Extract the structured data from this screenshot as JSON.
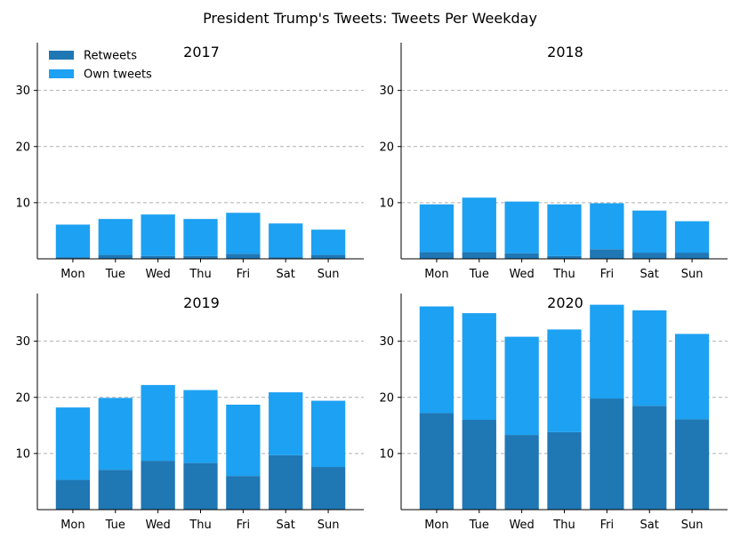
{
  "title": "President Trump's Tweets: Tweets Per Weekday",
  "colors": {
    "retweets": "#1f77b4",
    "own_tweets": "#1da1f2",
    "grid": "#b0b0b0"
  },
  "chart_data": [
    {
      "type": "bar",
      "title": "2017",
      "categories": [
        "Mon",
        "Tue",
        "Wed",
        "Thu",
        "Fri",
        "Sat",
        "Sun"
      ],
      "ylim": [
        0,
        38.5
      ],
      "yticks": [
        10,
        20,
        30
      ],
      "grid": "y-dashed",
      "legend": "top-left",
      "stacked": true,
      "series": [
        {
          "name": "Retweets",
          "values": [
            0.3,
            0.7,
            0.5,
            0.5,
            0.9,
            0.3,
            0.7
          ]
        },
        {
          "name": "Own tweets",
          "values": [
            5.8,
            6.4,
            7.4,
            6.6,
            7.3,
            6.0,
            4.5
          ]
        }
      ]
    },
    {
      "type": "bar",
      "title": "2018",
      "categories": [
        "Mon",
        "Tue",
        "Wed",
        "Thu",
        "Fri",
        "Sat",
        "Sun"
      ],
      "ylim": [
        0,
        38.5
      ],
      "yticks": [
        10,
        20,
        30
      ],
      "grid": "y-dashed",
      "stacked": true,
      "series": [
        {
          "name": "Retweets",
          "values": [
            1.2,
            1.2,
            1.0,
            0.5,
            1.7,
            1.1,
            1.1
          ]
        },
        {
          "name": "Own tweets",
          "values": [
            8.5,
            9.7,
            9.2,
            9.2,
            8.2,
            7.5,
            5.6
          ]
        }
      ]
    },
    {
      "type": "bar",
      "title": "2019",
      "categories": [
        "Mon",
        "Tue",
        "Wed",
        "Thu",
        "Fri",
        "Sat",
        "Sun"
      ],
      "ylim": [
        0,
        38.5
      ],
      "yticks": [
        10,
        20,
        30
      ],
      "grid": "y-dashed",
      "stacked": true,
      "series": [
        {
          "name": "Retweets",
          "values": [
            5.3,
            7.1,
            8.7,
            8.3,
            6.0,
            9.7,
            7.6
          ]
        },
        {
          "name": "Own tweets",
          "values": [
            12.9,
            12.8,
            13.5,
            13.0,
            12.7,
            11.2,
            11.8
          ]
        }
      ]
    },
    {
      "type": "bar",
      "title": "2020",
      "categories": [
        "Mon",
        "Tue",
        "Wed",
        "Thu",
        "Fri",
        "Sat",
        "Sun"
      ],
      "ylim": [
        0,
        38.5
      ],
      "yticks": [
        10,
        20,
        30
      ],
      "grid": "y-dashed",
      "stacked": true,
      "series": [
        {
          "name": "Retweets",
          "values": [
            17.2,
            16.0,
            13.3,
            13.8,
            19.8,
            18.5,
            16.1
          ]
        },
        {
          "name": "Own tweets",
          "values": [
            19.0,
            19.0,
            17.5,
            18.3,
            16.7,
            17.0,
            15.2
          ]
        }
      ]
    }
  ]
}
